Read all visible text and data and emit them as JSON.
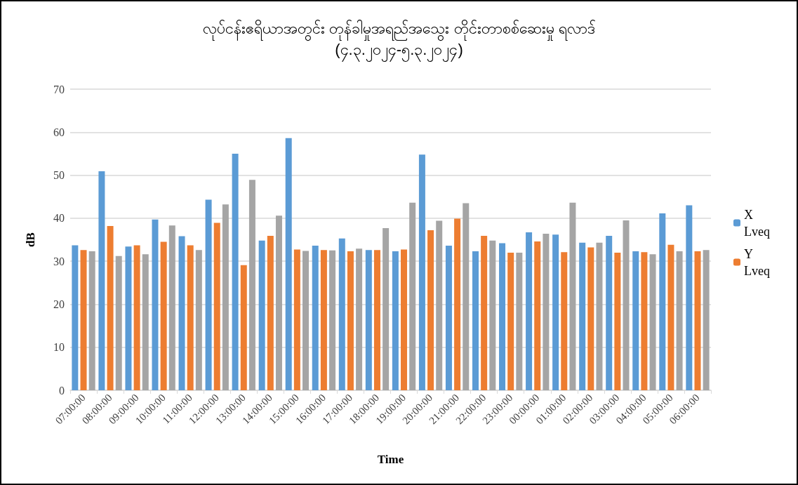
{
  "chart_data": {
    "type": "bar",
    "title": "လုပ်ငန်းဧရိယာအတွင်း တုန်ခါမှုအရည်အသွေး တိုင်းတာစစ်ဆေးမှု ရလာဒ်",
    "subtitle": "(၄.၃.၂၀၂၄-၅.၃.၂၀၂၄)",
    "xlabel": "Time",
    "ylabel": "dB",
    "categories": [
      "07:00:00",
      "08:00:00",
      "09:00:00",
      "10:00:00",
      "11:00:00",
      "12:00:00",
      "13:00:00",
      "14:00:00",
      "15:00:00",
      "16:00:00",
      "17:00:00",
      "18:00:00",
      "19:00:00",
      "20:00:00",
      "21:00:00",
      "22:00:00",
      "23:00:00",
      "00:00:00",
      "01:00:00",
      "02:00:00",
      "03:00:00",
      "04:00:00",
      "05:00:00",
      "06:00:00"
    ],
    "series": [
      {
        "name": "X Lveq",
        "color": "#5b9bd5",
        "values": [
          33.7,
          50.9,
          33.4,
          39.7,
          35.8,
          44.3,
          55,
          34.8,
          58.6,
          33.6,
          35.3,
          32.6,
          32.3,
          54.8,
          33.6,
          32.3,
          34.2,
          36.7,
          36.2,
          34.3,
          35.9,
          32.3,
          41.1,
          43
        ]
      },
      {
        "name": "Y Lveq",
        "color": "#ed7d31",
        "values": [
          32.6,
          38.2,
          33.7,
          34.5,
          33.7,
          38.9,
          29.1,
          35.9,
          32.7,
          32.6,
          32.3,
          32.6,
          32.7,
          37.2,
          39.9,
          35.9,
          32,
          34.6,
          32.1,
          33.2,
          32,
          32.1,
          33.8,
          32.3
        ]
      },
      {
        "color": "#a5a5a5",
        "values": [
          32.3,
          31.2,
          31.6,
          38.3,
          32.6,
          43.2,
          48.9,
          40.6,
          32.4,
          32.5,
          32.9,
          37.7,
          43.6,
          39.4,
          43.5,
          34.8,
          32,
          36.4,
          43.6,
          34.3,
          39.5,
          31.6,
          32.3,
          32.6
        ]
      }
    ],
    "ylim": [
      0,
      70
    ],
    "yticks": [
      0,
      10,
      20,
      30,
      40,
      50,
      60,
      70
    ],
    "grid": "y",
    "legend": "right"
  }
}
